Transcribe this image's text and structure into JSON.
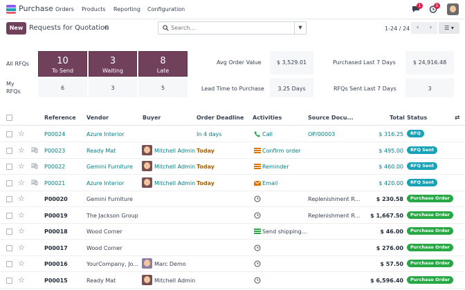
{
  "nav": {
    "app_name": "Purchase",
    "menus": [
      "Orders",
      "Products",
      "Reporting",
      "Configuration"
    ],
    "messages_badge": "1",
    "activity_badge": "5"
  },
  "control": {
    "new_label": "New",
    "title": "Requests for Quotation",
    "search_placeholder": "Search...",
    "pager": "1-24 / 24"
  },
  "stats": {
    "all_rfqs_label": "All RFQs",
    "my_rfqs_label_1": "My",
    "my_rfqs_label_2": "RFQs",
    "tiles": [
      {
        "value": "10",
        "label": "To Send"
      },
      {
        "value": "3",
        "label": "Waiting"
      },
      {
        "value": "8",
        "label": "Late"
      }
    ],
    "my_values": [
      "6",
      "3",
      "5"
    ],
    "avg_order_label": "Avg Order Value",
    "avg_order_value": "$ 3,529.01",
    "purchased_label": "Purchased Last 7 Days",
    "purchased_value": "$ 24,916.48",
    "lead_time_label": "Lead Time to Purchase",
    "lead_time_value": "3.25 Days",
    "rfqs_sent_label": "RFQs Sent Last 7 Days",
    "rfqs_sent_value": "3"
  },
  "table": {
    "headers": {
      "reference": "Reference",
      "vendor": "Vendor",
      "buyer": "Buyer",
      "deadline": "Order Deadline",
      "activities": "Activities",
      "source": "Source Docu...",
      "total": "Total",
      "status": "Status"
    },
    "rows": [
      {
        "ref": "P00024",
        "vendor": "Azure Interior",
        "buyer": "",
        "deadline": "In 4 days",
        "activity": "Call",
        "source": "OP/00003",
        "total": "$ 316.25",
        "status": "RFQ"
      },
      {
        "ref": "P00023",
        "vendor": "Ready Mat",
        "buyer": "Mitchell Admin",
        "deadline": "Today",
        "activity": "Confirm order",
        "source": "",
        "total": "$ 495.00",
        "status": "RFQ Sent"
      },
      {
        "ref": "P00022",
        "vendor": "Gemini Furniture",
        "buyer": "Mitchell Admin",
        "deadline": "Today",
        "activity": "Reminder",
        "source": "",
        "total": "$ 460.00",
        "status": "RFQ Sent"
      },
      {
        "ref": "P00021",
        "vendor": "Azure Interior",
        "buyer": "Mitchell Admin",
        "deadline": "Today",
        "activity": "Email",
        "source": "",
        "total": "$ 420.00",
        "status": "RFQ Sent"
      },
      {
        "ref": "P00020",
        "vendor": "Gemini Furniture",
        "buyer": "",
        "deadline": "",
        "activity": "",
        "source": "Replenishment R...",
        "total": "$ 230.58",
        "status": "Purchase Order"
      },
      {
        "ref": "P00019",
        "vendor": "The Jackson Group",
        "buyer": "",
        "deadline": "",
        "activity": "",
        "source": "Replenishment R...",
        "total": "$ 1,667.50",
        "status": "Purchase Order"
      },
      {
        "ref": "P00018",
        "vendor": "Wood Corner",
        "buyer": "",
        "deadline": "",
        "activity": "Send shipping...",
        "source": "",
        "total": "$ 46.00",
        "status": "Purchase Order"
      },
      {
        "ref": "P00017",
        "vendor": "Wood Corner",
        "buyer": "",
        "deadline": "",
        "activity": "",
        "source": "",
        "total": "$ 276.00",
        "status": "Purchase Order"
      },
      {
        "ref": "P00016",
        "vendor": "YourCompany, Jo...",
        "buyer": "Marc Demo",
        "deadline": "",
        "activity": "",
        "source": "",
        "total": "$ 57.50",
        "status": "Purchase Order"
      },
      {
        "ref": "P00015",
        "vendor": "Ready Mat",
        "buyer": "Mitchell Admin",
        "deadline": "",
        "activity": "",
        "source": "",
        "total": "$ 6,596.40",
        "status": "Purchase Order"
      }
    ]
  },
  "colors": {
    "brand": "#71405b",
    "link": "#017e84",
    "rfq": "#17a2b8",
    "purchase_order": "#28a745",
    "today": "#a16207"
  }
}
